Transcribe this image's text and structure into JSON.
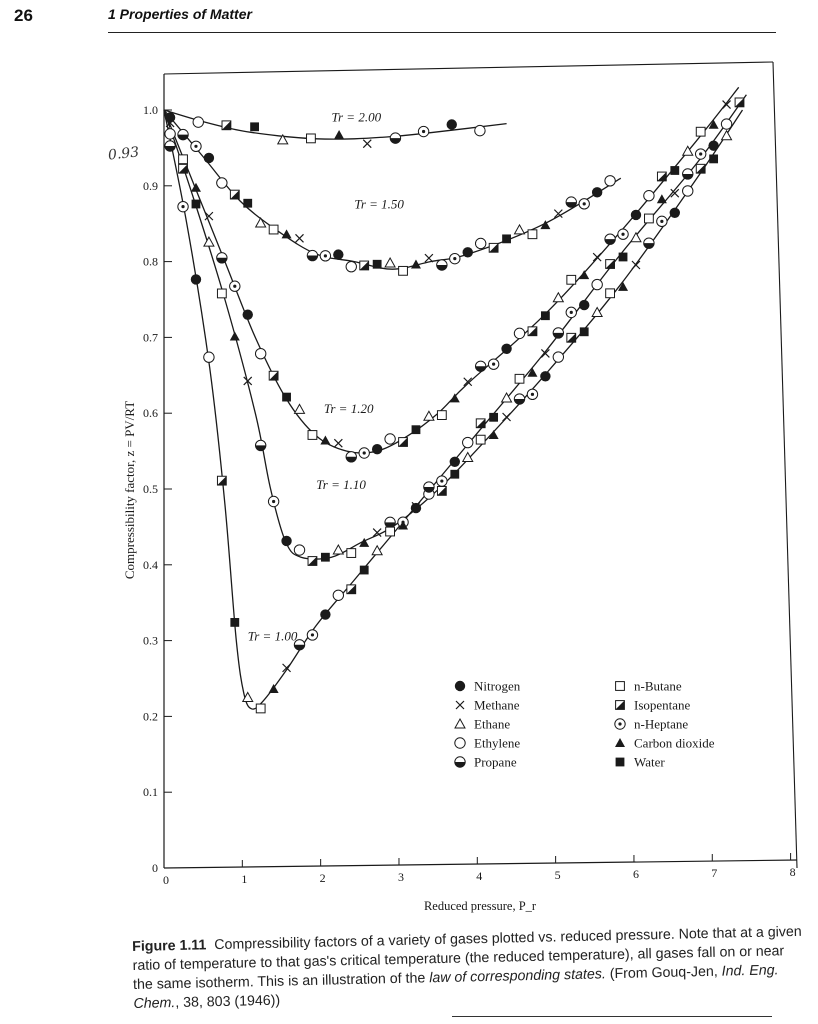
{
  "header": {
    "page_number": "26",
    "running_head": "1  Properties of Matter"
  },
  "margin_note": "0.93",
  "caption": {
    "label": "Figure 1.11",
    "text_1": "Compressibility factors of a variety of gases plotted vs. reduced pressure. Note that at a given ratio of temperature to that gas's critical temperature (the reduced temperature), all gases fall on or near the same isotherm. This is an illustration of the ",
    "text_italic_1": "law of corresponding states.",
    "text_2": " (From Gouq-Jen, ",
    "text_italic_2": "Ind. Eng. Chem.",
    "text_3": ", 38, 803 (1946))"
  },
  "chart_data": {
    "type": "scatter",
    "xlabel": "Reduced pressure, P_r",
    "ylabel": "Compressibility factor, z = PV/RT",
    "xlim": [
      0,
      8
    ],
    "ylim": [
      0,
      1.0
    ],
    "x_ticks": [
      "0",
      "1",
      "2",
      "3",
      "4",
      "5",
      "6",
      "7",
      "8"
    ],
    "y_ticks": [
      "0",
      "0.1",
      "0.2",
      "0.3",
      "0.4",
      "0.5",
      "0.6",
      "0.7",
      "0.8",
      "0.9",
      "1.0"
    ],
    "grid": false,
    "legend_position": "lower-right",
    "legend": [
      {
        "marker": "filled-circle",
        "label": "Nitrogen"
      },
      {
        "marker": "cross",
        "label": "Methane"
      },
      {
        "marker": "open-triangle",
        "label": "Ethane"
      },
      {
        "marker": "open-circle",
        "label": "Ethylene"
      },
      {
        "marker": "half-circle",
        "label": "Propane"
      },
      {
        "marker": "open-square",
        "label": "n-Butane"
      },
      {
        "marker": "half-square",
        "label": "Isopentane"
      },
      {
        "marker": "dot-circle",
        "label": "n-Heptane"
      },
      {
        "marker": "filled-triangle",
        "label": "Carbon dioxide"
      },
      {
        "marker": "filled-square",
        "label": "Water"
      }
    ],
    "isotherms": [
      {
        "name": "Tr = 2.00",
        "label_at": [
          2.2,
          0.985
        ],
        "x": [
          0,
          0.5,
          1.0,
          1.5,
          2.0,
          2.5,
          3.0,
          3.5,
          4.5
        ],
        "y": [
          1.0,
          0.985,
          0.973,
          0.966,
          0.962,
          0.962,
          0.965,
          0.97,
          0.982
        ]
      },
      {
        "name": "Tr = 1.50",
        "label_at": [
          2.5,
          0.87
        ],
        "x": [
          0,
          0.5,
          1.0,
          1.5,
          2.0,
          2.5,
          3.0,
          3.5,
          4.0,
          5.0,
          6.0
        ],
        "y": [
          1.0,
          0.94,
          0.88,
          0.84,
          0.81,
          0.8,
          0.79,
          0.8,
          0.81,
          0.85,
          0.91
        ]
      },
      {
        "name": "Tr = 1.20",
        "label_at": [
          2.1,
          0.6
        ],
        "x": [
          0,
          0.4,
          0.8,
          1.2,
          1.6,
          2.0,
          2.4,
          2.8,
          3.2,
          3.6,
          4.0,
          5.0,
          6.0,
          7.0,
          7.55
        ],
        "y": [
          1.0,
          0.9,
          0.8,
          0.7,
          0.62,
          0.57,
          0.55,
          0.55,
          0.57,
          0.6,
          0.64,
          0.73,
          0.84,
          0.96,
          1.03
        ]
      },
      {
        "name": "Tr = 1.10",
        "label_at": [
          2.0,
          0.5
        ],
        "x": [
          0,
          0.4,
          0.8,
          1.2,
          1.4,
          1.6,
          1.8,
          2.2,
          2.6,
          3.0,
          3.5,
          4.0,
          5.0,
          6.0,
          7.0,
          7.6
        ],
        "y": [
          1.0,
          0.88,
          0.75,
          0.6,
          0.5,
          0.43,
          0.41,
          0.41,
          0.43,
          0.45,
          0.49,
          0.54,
          0.65,
          0.77,
          0.91,
          1.0
        ]
      },
      {
        "name": "Tr = 1.00",
        "label_at": [
          1.1,
          0.3
        ],
        "x": [
          0,
          0.3,
          0.6,
          0.8,
          0.95,
          1.05,
          1.15,
          1.3,
          1.6,
          2.0,
          2.5,
          3.0,
          4.0,
          5.0,
          6.0,
          7.0,
          7.65
        ],
        "y": [
          1.0,
          0.85,
          0.66,
          0.48,
          0.3,
          0.23,
          0.21,
          0.22,
          0.26,
          0.32,
          0.38,
          0.44,
          0.56,
          0.68,
          0.81,
          0.93,
          1.02
        ]
      }
    ]
  }
}
